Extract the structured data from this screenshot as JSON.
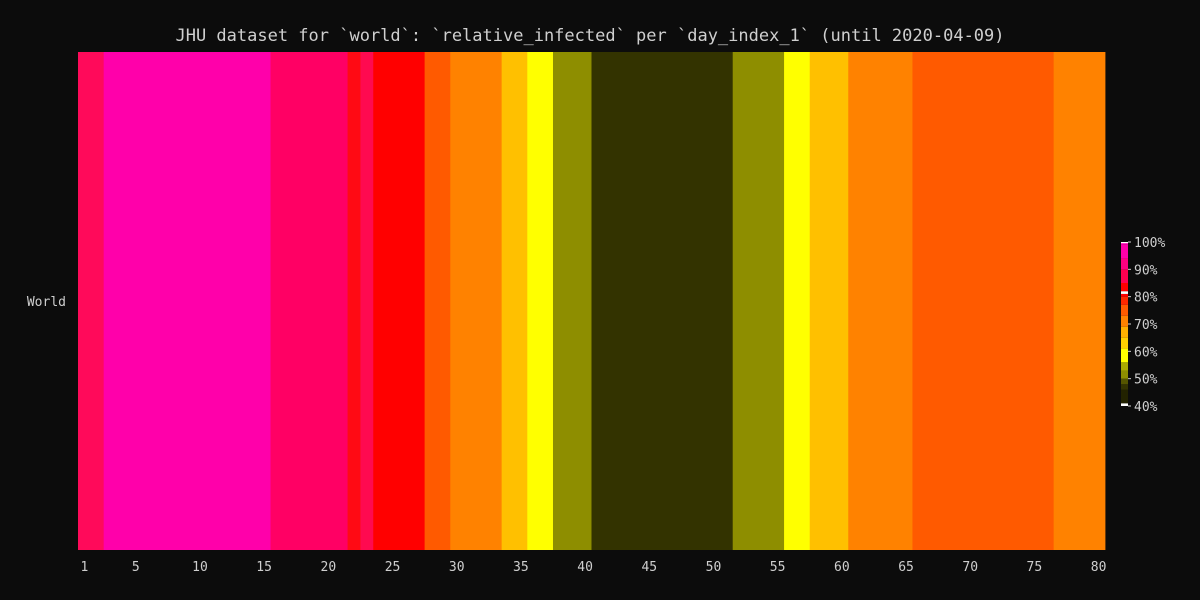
{
  "chart_data": {
    "type": "heatmap",
    "title": "JHU dataset for `world`: `relative_infected` per `day_index_1` (until 2020-04-09)",
    "xlabel": "",
    "ylabel": "",
    "row_label": "World",
    "x_range": [
      1,
      80
    ],
    "x_ticks": [
      1,
      5,
      10,
      15,
      20,
      25,
      30,
      35,
      40,
      45,
      50,
      55,
      60,
      65,
      70,
      75,
      80
    ],
    "x_tick_labels": [
      "1",
      "5",
      "10",
      "15",
      "20",
      "25",
      "30",
      "35",
      "40",
      "45",
      "50",
      "55",
      "60",
      "65",
      "70",
      "75",
      "80"
    ],
    "color_range": [
      40,
      100
    ],
    "colorbar_ticks": [
      100,
      90,
      80,
      70,
      60,
      50,
      40
    ],
    "colorbar_tick_labels": [
      "100%",
      "90%",
      "80%",
      "70%",
      "60%",
      "50%",
      "40%"
    ],
    "segments": [
      {
        "from": 1,
        "to": 2,
        "value": 87,
        "color": "#ff0a5a"
      },
      {
        "from": 3,
        "to": 15,
        "value": 94,
        "color": "#ff00aa"
      },
      {
        "from": 16,
        "to": 21,
        "value": 88,
        "color": "#ff0064"
      },
      {
        "from": 22,
        "to": 22,
        "value": 81,
        "color": "#ff0a14"
      },
      {
        "from": 23,
        "to": 23,
        "value": 86,
        "color": "#ff0a50"
      },
      {
        "from": 24,
        "to": 27,
        "value": 80,
        "color": "#ff0000"
      },
      {
        "from": 28,
        "to": 29,
        "value": 73,
        "color": "#ff5a00"
      },
      {
        "from": 30,
        "to": 33,
        "value": 70,
        "color": "#ff8200"
      },
      {
        "from": 34,
        "to": 35,
        "value": 65,
        "color": "#ffc000"
      },
      {
        "from": 36,
        "to": 37,
        "value": 60,
        "color": "#ffff00"
      },
      {
        "from": 38,
        "to": 40,
        "value": 52,
        "color": "#8e8e00"
      },
      {
        "from": 41,
        "to": 51,
        "value": 44,
        "color": "#333300"
      },
      {
        "from": 52,
        "to": 55,
        "value": 52,
        "color": "#8e8e00"
      },
      {
        "from": 56,
        "to": 57,
        "value": 60,
        "color": "#ffff00"
      },
      {
        "from": 58,
        "to": 60,
        "value": 65,
        "color": "#ffc000"
      },
      {
        "from": 61,
        "to": 65,
        "value": 70,
        "color": "#ff8200"
      },
      {
        "from": 66,
        "to": 76,
        "value": 73,
        "color": "#ff5a00"
      },
      {
        "from": 77,
        "to": 80,
        "value": 70,
        "color": "#ff8200"
      }
    ],
    "colorscale": [
      {
        "value": 40,
        "color": "#ffffff"
      },
      {
        "value": 41,
        "color": "#222200"
      },
      {
        "value": 46,
        "color": "#333300"
      },
      {
        "value": 48,
        "color": "#555500"
      },
      {
        "value": 50,
        "color": "#8e8e00"
      },
      {
        "value": 53,
        "color": "#aaaa00"
      },
      {
        "value": 56,
        "color": "#ffff00"
      },
      {
        "value": 61,
        "color": "#ffd000"
      },
      {
        "value": 65,
        "color": "#ffb000"
      },
      {
        "value": 69,
        "color": "#ff8200"
      },
      {
        "value": 73,
        "color": "#ff5a00"
      },
      {
        "value": 77,
        "color": "#ff2800"
      },
      {
        "value": 80,
        "color": "#ff0000"
      },
      {
        "value": 81,
        "color": "#ffffff"
      },
      {
        "value": 82,
        "color": "#ff0000"
      },
      {
        "value": 85,
        "color": "#ff0050"
      },
      {
        "value": 90,
        "color": "#ff0080"
      },
      {
        "value": 94,
        "color": "#ff00aa"
      },
      {
        "value": 99,
        "color": "#ff00b4"
      },
      {
        "value": 100,
        "color": "#ffffff"
      }
    ],
    "grid": false,
    "legend": "colorbar-right"
  }
}
